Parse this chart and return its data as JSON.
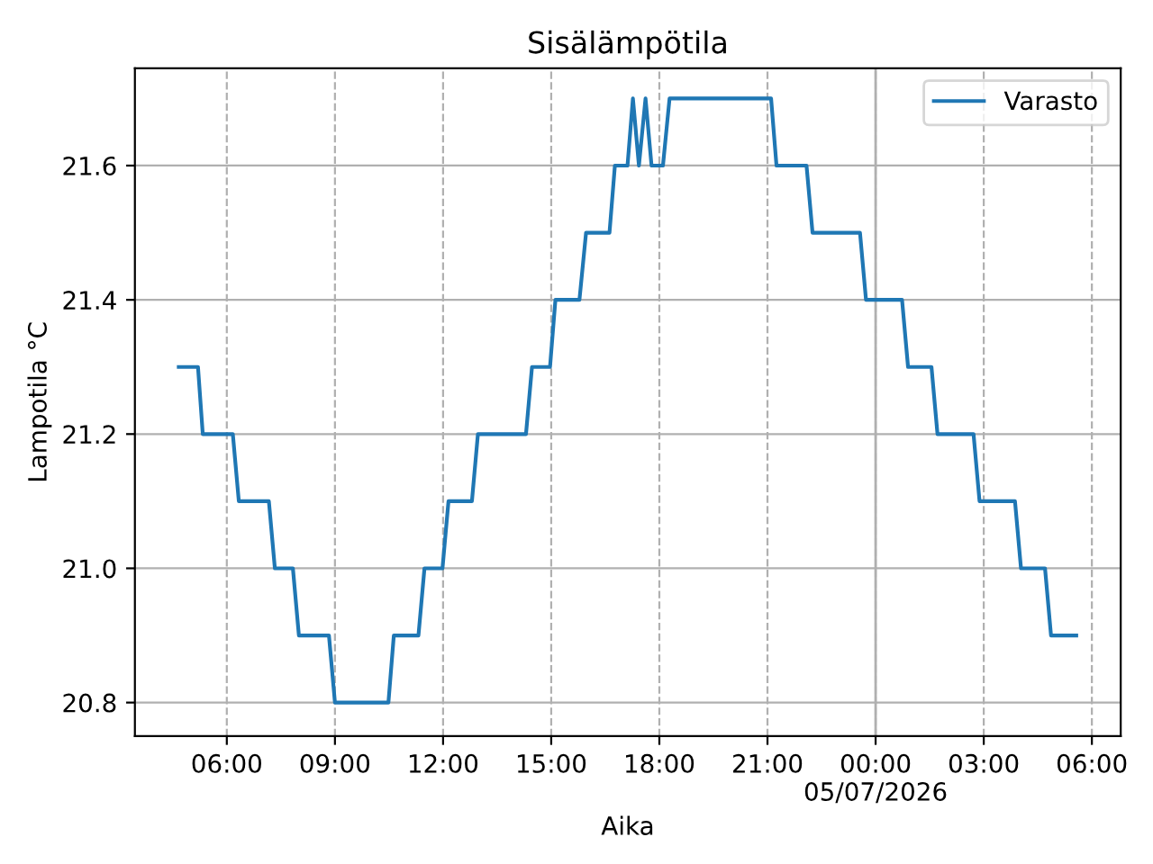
{
  "chart_data": {
    "type": "line",
    "title": "Sisälämpötila",
    "xlabel": "Aika",
    "ylabel": "Lampotila °C",
    "xlim": [
      "2026-07-04T03:27",
      "2026-07-05T06:48"
    ],
    "ylim": [
      20.75,
      21.745
    ],
    "xticks": [
      {
        "value": "2026-07-04T06:00",
        "label": "06:00"
      },
      {
        "value": "2026-07-04T09:00",
        "label": "09:00"
      },
      {
        "value": "2026-07-04T12:00",
        "label": "12:00"
      },
      {
        "value": "2026-07-04T15:00",
        "label": "15:00"
      },
      {
        "value": "2026-07-04T18:00",
        "label": "18:00"
      },
      {
        "value": "2026-07-04T21:00",
        "label": "21:00"
      },
      {
        "value": "2026-07-05T00:00",
        "label": "00:00\n05/07/2026"
      },
      {
        "value": "2026-07-05T03:00",
        "label": "03:00"
      },
      {
        "value": "2026-07-05T06:00",
        "label": "06:00"
      }
    ],
    "yticks": [
      {
        "value": 20.8,
        "label": "20.8"
      },
      {
        "value": 21.0,
        "label": "21.0"
      },
      {
        "value": 21.2,
        "label": "21.2"
      },
      {
        "value": 21.4,
        "label": "21.4"
      },
      {
        "value": 21.6,
        "label": "21.6"
      }
    ],
    "grid": true,
    "legend": "top right",
    "ref_lines": [
      {
        "axis": "x",
        "value": "2026-07-05T00:00",
        "color": "#b0b0b0",
        "line_style": "solid"
      }
    ],
    "series": [
      {
        "name": "Varasto",
        "color": "#1f77b4",
        "x": [
          "2026-07-04T04:40",
          "2026-07-04T05:12",
          "2026-07-04T05:20",
          "2026-07-04T06:10",
          "2026-07-04T06:20",
          "2026-07-04T07:10",
          "2026-07-04T07:20",
          "2026-07-04T07:50",
          "2026-07-04T08:00",
          "2026-07-04T08:50",
          "2026-07-04T09:00",
          "2026-07-04T10:29",
          "2026-07-04T10:38",
          "2026-07-04T11:19",
          "2026-07-04T11:29",
          "2026-07-04T11:59",
          "2026-07-04T12:09",
          "2026-07-04T12:48",
          "2026-07-04T12:58",
          "2026-07-04T14:18",
          "2026-07-04T14:28",
          "2026-07-04T14:58",
          "2026-07-04T15:07",
          "2026-07-04T15:47",
          "2026-07-04T15:58",
          "2026-07-04T16:37",
          "2026-07-04T16:46",
          "2026-07-04T17:07",
          "2026-07-04T17:16",
          "2026-07-04T17:26",
          "2026-07-04T17:37",
          "2026-07-04T17:47",
          "2026-07-04T18:06",
          "2026-07-04T18:17",
          "2026-07-04T21:06",
          "2026-07-04T21:15",
          "2026-07-04T22:05",
          "2026-07-04T22:15",
          "2026-07-04T23:34",
          "2026-07-04T23:44",
          "2026-07-05T00:44",
          "2026-07-05T00:54",
          "2026-07-05T01:33",
          "2026-07-05T01:43",
          "2026-07-05T02:43",
          "2026-07-05T02:53",
          "2026-07-05T03:52",
          "2026-07-05T04:02",
          "2026-07-05T04:42",
          "2026-07-05T04:52",
          "2026-07-05T05:34"
        ],
        "values": [
          21.3,
          21.3,
          21.2,
          21.2,
          21.1,
          21.1,
          21.0,
          21.0,
          20.9,
          20.9,
          20.8,
          20.8,
          20.9,
          20.9,
          21.0,
          21.0,
          21.1,
          21.1,
          21.2,
          21.2,
          21.3,
          21.3,
          21.4,
          21.4,
          21.5,
          21.5,
          21.6,
          21.6,
          21.7,
          21.6,
          21.7,
          21.6,
          21.6,
          21.7,
          21.7,
          21.6,
          21.6,
          21.5,
          21.5,
          21.4,
          21.4,
          21.3,
          21.3,
          21.2,
          21.2,
          21.1,
          21.1,
          21.0,
          21.0,
          20.9,
          20.9
        ]
      }
    ]
  }
}
